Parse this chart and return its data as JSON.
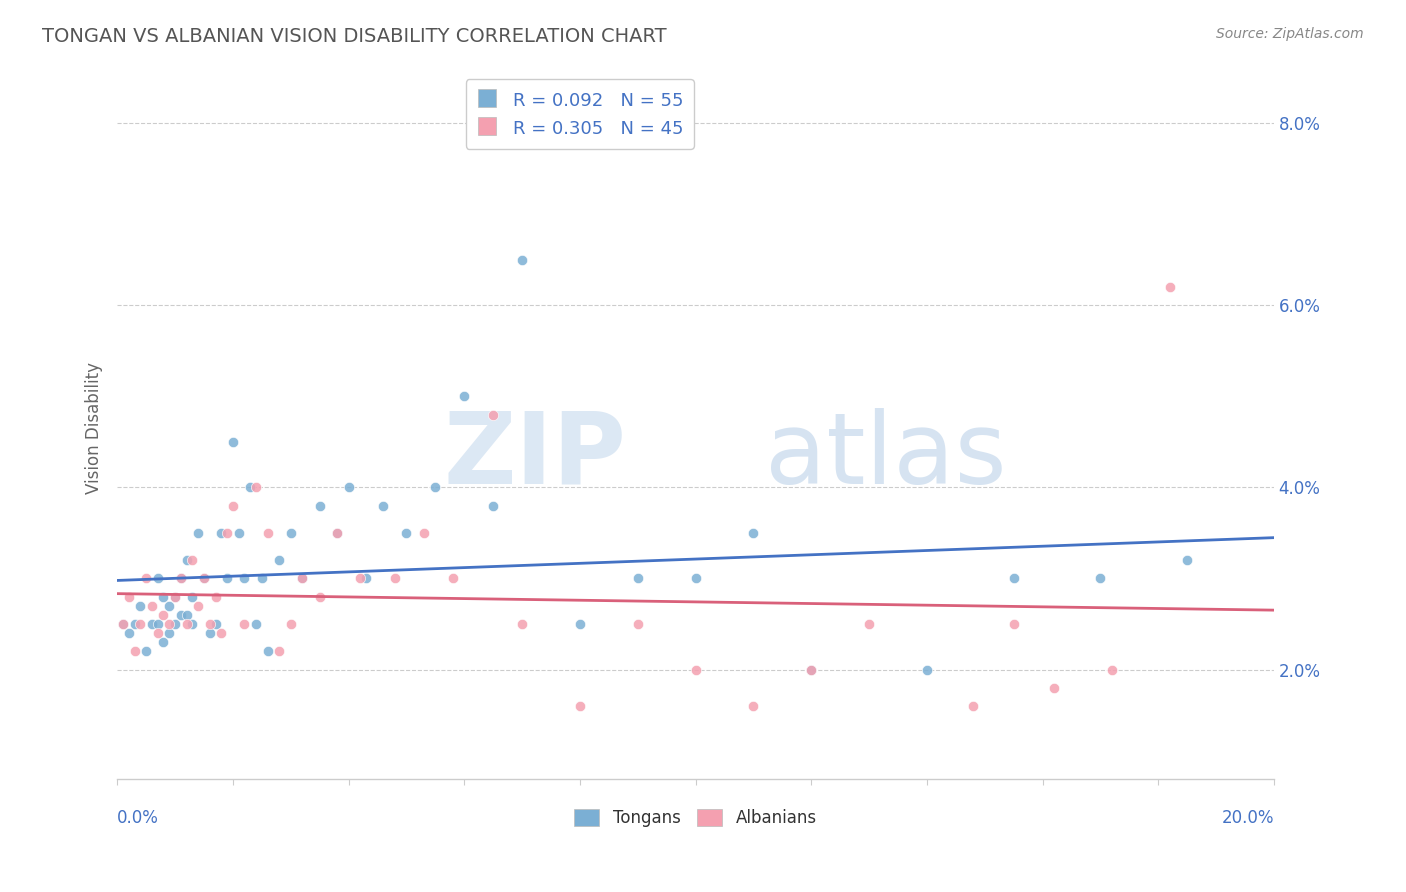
{
  "title": "TONGAN VS ALBANIAN VISION DISABILITY CORRELATION CHART",
  "source": "Source: ZipAtlas.com",
  "ylabel": "Vision Disability",
  "xlim": [
    0.0,
    0.2
  ],
  "ylim": [
    0.008,
    0.085
  ],
  "yticks": [
    0.02,
    0.04,
    0.06,
    0.08
  ],
  "ytick_labels": [
    "2.0%",
    "4.0%",
    "6.0%",
    "8.0%"
  ],
  "tongan_color": "#7bafd4",
  "albanian_color": "#f4a0b0",
  "tongan_line_color": "#4472c4",
  "albanian_line_color": "#d9607a",
  "legend_R_tongan": "R = 0.092",
  "legend_N_tongan": "N = 55",
  "legend_R_albanian": "R = 0.305",
  "legend_N_albanian": "N = 45",
  "tongan_x": [
    0.001,
    0.002,
    0.003,
    0.004,
    0.005,
    0.006,
    0.007,
    0.007,
    0.008,
    0.008,
    0.009,
    0.009,
    0.01,
    0.01,
    0.011,
    0.011,
    0.012,
    0.012,
    0.013,
    0.013,
    0.014,
    0.015,
    0.016,
    0.017,
    0.018,
    0.019,
    0.02,
    0.021,
    0.022,
    0.023,
    0.024,
    0.025,
    0.026,
    0.028,
    0.03,
    0.032,
    0.035,
    0.038,
    0.04,
    0.043,
    0.046,
    0.05,
    0.055,
    0.06,
    0.065,
    0.07,
    0.08,
    0.09,
    0.1,
    0.11,
    0.12,
    0.14,
    0.155,
    0.17,
    0.185
  ],
  "tongan_y": [
    0.025,
    0.024,
    0.025,
    0.027,
    0.022,
    0.025,
    0.03,
    0.025,
    0.028,
    0.023,
    0.024,
    0.027,
    0.025,
    0.028,
    0.026,
    0.03,
    0.026,
    0.032,
    0.025,
    0.028,
    0.035,
    0.03,
    0.024,
    0.025,
    0.035,
    0.03,
    0.045,
    0.035,
    0.03,
    0.04,
    0.025,
    0.03,
    0.022,
    0.032,
    0.035,
    0.03,
    0.038,
    0.035,
    0.04,
    0.03,
    0.038,
    0.035,
    0.04,
    0.05,
    0.038,
    0.065,
    0.025,
    0.03,
    0.03,
    0.035,
    0.02,
    0.02,
    0.03,
    0.03,
    0.032
  ],
  "albanian_x": [
    0.001,
    0.002,
    0.003,
    0.004,
    0.005,
    0.006,
    0.007,
    0.008,
    0.009,
    0.01,
    0.011,
    0.012,
    0.013,
    0.014,
    0.015,
    0.016,
    0.017,
    0.018,
    0.019,
    0.02,
    0.022,
    0.024,
    0.026,
    0.028,
    0.03,
    0.032,
    0.035,
    0.038,
    0.042,
    0.048,
    0.053,
    0.058,
    0.065,
    0.07,
    0.08,
    0.09,
    0.1,
    0.11,
    0.12,
    0.13,
    0.148,
    0.155,
    0.162,
    0.172,
    0.182
  ],
  "albanian_y": [
    0.025,
    0.028,
    0.022,
    0.025,
    0.03,
    0.027,
    0.024,
    0.026,
    0.025,
    0.028,
    0.03,
    0.025,
    0.032,
    0.027,
    0.03,
    0.025,
    0.028,
    0.024,
    0.035,
    0.038,
    0.025,
    0.04,
    0.035,
    0.022,
    0.025,
    0.03,
    0.028,
    0.035,
    0.03,
    0.03,
    0.035,
    0.03,
    0.048,
    0.025,
    0.016,
    0.025,
    0.02,
    0.016,
    0.02,
    0.025,
    0.016,
    0.025,
    0.018,
    0.02,
    0.062
  ],
  "background_color": "#ffffff",
  "grid_color": "#cccccc"
}
